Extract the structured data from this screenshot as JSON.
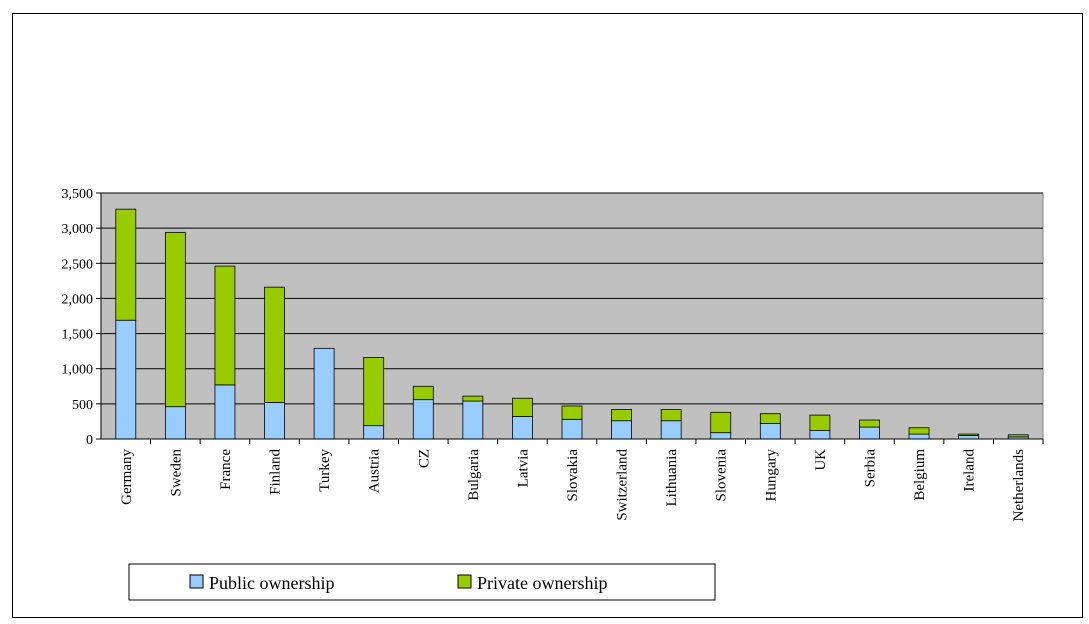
{
  "chart_data": {
    "type": "bar",
    "stacked": true,
    "categories": [
      "Germany",
      "Sweden",
      "France",
      "Finland",
      "Turkey",
      "Austria",
      "CZ",
      "Bulgaria",
      "Latvia",
      "Slovakia",
      "Switzerland",
      "Lithuania",
      "Slovenia",
      "Hungary",
      "UK",
      "Serbia",
      "Belgium",
      "Ireland",
      "Netherlands"
    ],
    "series": [
      {
        "name": "Public ownership",
        "color": "#99ccff",
        "values": [
          1690,
          460,
          770,
          520,
          1290,
          190,
          560,
          540,
          320,
          280,
          260,
          260,
          90,
          220,
          120,
          170,
          70,
          50,
          30
        ]
      },
      {
        "name": "Private ownership",
        "color": "#99cc00",
        "values": [
          1580,
          2480,
          1690,
          1640,
          0,
          970,
          190,
          70,
          260,
          190,
          160,
          160,
          290,
          140,
          220,
          100,
          90,
          20,
          30
        ]
      }
    ],
    "yticks": [
      "0",
      "500",
      "1,000",
      "1,500",
      "2,000",
      "2,500",
      "3,000",
      "3,500"
    ],
    "ylim": [
      0,
      3500
    ],
    "grid": true,
    "plot_background": "#c0c0c0",
    "legend_position": "bottom-left"
  }
}
